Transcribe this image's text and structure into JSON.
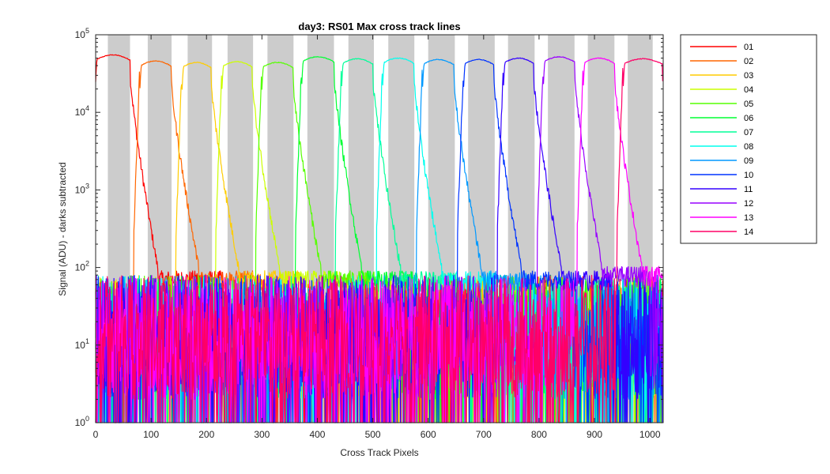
{
  "chart_data": {
    "type": "line",
    "title": "day3: RS01  Max cross track lines",
    "xlabel": "Cross Track Pixels",
    "ylabel": "Signal (ADU) - darks subtracted",
    "xlim": [
      0,
      1024
    ],
    "ylim": [
      1,
      100000
    ],
    "yscale": "log",
    "xticks": [
      0,
      100,
      200,
      300,
      400,
      500,
      600,
      700,
      800,
      900,
      1000
    ],
    "xtick_labels": [
      "0",
      "100",
      "200",
      "300",
      "400",
      "500",
      "600",
      "700",
      "800",
      "900",
      "1000"
    ],
    "yticks": [
      1,
      10,
      100,
      1000,
      10000,
      100000
    ],
    "ytick_labels": [
      {
        "base": "10",
        "exp": "0"
      },
      {
        "base": "10",
        "exp": "1"
      },
      {
        "base": "10",
        "exp": "2"
      },
      {
        "base": "10",
        "exp": "3"
      },
      {
        "base": "10",
        "exp": "4"
      },
      {
        "base": "10",
        "exp": "5"
      }
    ],
    "grid": false,
    "legend_position": "outside-right",
    "shaded_bands_x": [
      [
        22,
        62
      ],
      [
        94,
        137
      ],
      [
        166,
        210
      ],
      [
        238,
        284
      ],
      [
        310,
        357
      ],
      [
        382,
        430
      ],
      [
        456,
        502
      ],
      [
        528,
        575
      ],
      [
        600,
        648
      ],
      [
        672,
        720
      ],
      [
        744,
        792
      ],
      [
        816,
        864
      ],
      [
        888,
        936
      ],
      [
        960,
        1005
      ]
    ],
    "noise_floor": {
      "low": 1,
      "high": 100
    },
    "series": [
      {
        "name": "01",
        "color": "#ff0000",
        "plateau_x": [
          0,
          62
        ],
        "plateau_y": 55000,
        "tail_to_x": 230,
        "tail_end_y": 70
      },
      {
        "name": "02",
        "color": "#ff6600",
        "plateau_x": [
          80,
          136
        ],
        "plateau_y": 46000,
        "tail_to_x": 300,
        "tail_end_y": 70
      },
      {
        "name": "03",
        "color": "#ffcc00",
        "plateau_x": [
          156,
          208
        ],
        "plateau_y": 44000,
        "tail_to_x": 370,
        "tail_end_y": 70
      },
      {
        "name": "04",
        "color": "#ccff00",
        "plateau_x": [
          228,
          282
        ],
        "plateau_y": 45000,
        "tail_to_x": 440,
        "tail_end_y": 70
      },
      {
        "name": "05",
        "color": "#55ff00",
        "plateau_x": [
          300,
          356
        ],
        "plateau_y": 44000,
        "tail_to_x": 510,
        "tail_end_y": 70
      },
      {
        "name": "06",
        "color": "#00ff33",
        "plateau_x": [
          372,
          430
        ],
        "plateau_y": 52000,
        "tail_to_x": 580,
        "tail_end_y": 70
      },
      {
        "name": "07",
        "color": "#00ff99",
        "plateau_x": [
          444,
          500
        ],
        "plateau_y": 49000,
        "tail_to_x": 650,
        "tail_end_y": 70
      },
      {
        "name": "08",
        "color": "#00ffee",
        "plateau_x": [
          518,
          574
        ],
        "plateau_y": 50000,
        "tail_to_x": 720,
        "tail_end_y": 70
      },
      {
        "name": "09",
        "color": "#0099ff",
        "plateau_x": [
          590,
          646
        ],
        "plateau_y": 48000,
        "tail_to_x": 790,
        "tail_end_y": 70
      },
      {
        "name": "10",
        "color": "#0033ff",
        "plateau_x": [
          664,
          718
        ],
        "plateau_y": 48000,
        "tail_to_x": 860,
        "tail_end_y": 70
      },
      {
        "name": "11",
        "color": "#3300ff",
        "plateau_x": [
          736,
          790
        ],
        "plateau_y": 50000,
        "tail_to_x": 930,
        "tail_end_y": 70
      },
      {
        "name": "12",
        "color": "#9900ff",
        "plateau_x": [
          808,
          864
        ],
        "plateau_y": 52000,
        "tail_to_x": 1000,
        "tail_end_y": 80
      },
      {
        "name": "13",
        "color": "#ff00ff",
        "plateau_x": [
          880,
          936
        ],
        "plateau_y": 50000,
        "tail_to_x": 1024,
        "tail_end_y": 80
      },
      {
        "name": "14",
        "color": "#ff0066",
        "plateau_x": [
          952,
          1022
        ],
        "plateau_y": 49000,
        "tail_to_x": 1024,
        "tail_end_y": 80
      }
    ]
  }
}
